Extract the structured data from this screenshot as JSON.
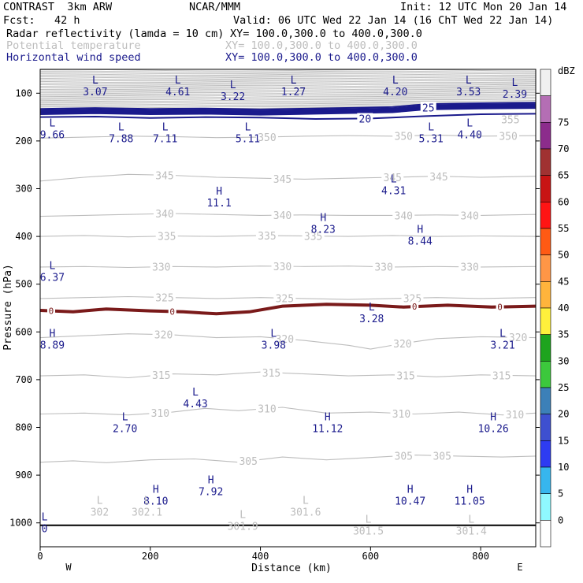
{
  "header": {
    "title_left": "CONTRAST  3km ARW",
    "title_center": "NCAR/MMM",
    "init": "Init: 12 UTC Mon 20 Jan 14",
    "fcst": "Fcst:   42 h",
    "valid": "Valid: 06 UTC Wed 22 Jan 14 (16 ChT Wed 22 Jan 14)",
    "field1": "Radar reflectivity (lamda = 10 cm)",
    "field1_xy": "XY= 100.0,300.0 to 400.0,300.0",
    "field2": "Potential temperature",
    "field2_xy": "XY= 100.0,300.0 to 400.0,300.0",
    "field3": "Horizontal wind speed",
    "field3_xy": "XY= 100.0,300.0 to 400.0,300.0"
  },
  "colors": {
    "theta": "#bdbdbd",
    "wind": "#1a1a8c",
    "zero_wind": "#7a1a1a",
    "ground": "#000000"
  },
  "chart_data": {
    "type": "contour",
    "xlabel": "Distance (km)",
    "ylabel": "Pressure (hPa)",
    "xlim": [
      0,
      900
    ],
    "ylim": [
      1050,
      50
    ],
    "xticks": [
      0,
      200,
      400,
      600,
      800
    ],
    "yticks": [
      100,
      200,
      300,
      400,
      500,
      600,
      700,
      800,
      900,
      1000
    ],
    "x_ends": [
      "W",
      "E"
    ],
    "colorbar": {
      "unit": "dBZ",
      "levels": [
        "0",
        "5",
        "10",
        "15",
        "20",
        "25",
        "30",
        "35",
        "40",
        "45",
        "50",
        "55",
        "60",
        "65",
        "70",
        "75"
      ],
      "colors": [
        "#ffffff",
        "#8ff8ff",
        "#37b6ee",
        "#2e3cf2",
        "#3e50d0",
        "#3c80b8",
        "#3cc83c",
        "#1ea41e",
        "#fff03c",
        "#ffb43c",
        "#ff9646",
        "#ff5a14",
        "#ff1414",
        "#c81414",
        "#a03232",
        "#8c2c8c",
        "#b46eb4",
        "#f0f0f0"
      ]
    },
    "theta_contours": [
      {
        "label": "305",
        "pts": [
          [
            0,
            873
          ],
          [
            60,
            870
          ],
          [
            120,
            874
          ],
          [
            200,
            868
          ],
          [
            280,
            866
          ],
          [
            360,
            873
          ],
          [
            440,
            862
          ],
          [
            520,
            868
          ],
          [
            600,
            863
          ],
          [
            680,
            858
          ],
          [
            760,
            860
          ],
          [
            840,
            862
          ],
          [
            900,
            860
          ]
        ],
        "label_x": [
          378,
          660,
          730
        ]
      },
      {
        "label": "310",
        "pts": [
          [
            0,
            772
          ],
          [
            80,
            770
          ],
          [
            160,
            774
          ],
          [
            240,
            768
          ],
          [
            300,
            760
          ],
          [
            360,
            765
          ],
          [
            440,
            758
          ],
          [
            520,
            770
          ],
          [
            600,
            768
          ],
          [
            680,
            772
          ],
          [
            760,
            768
          ],
          [
            840,
            774
          ],
          [
            900,
            770
          ]
        ],
        "label_x": [
          218,
          412,
          656,
          862
        ]
      },
      {
        "label": "315",
        "pts": [
          [
            0,
            692
          ],
          [
            80,
            690
          ],
          [
            160,
            696
          ],
          [
            240,
            688
          ],
          [
            320,
            690
          ],
          [
            400,
            684
          ],
          [
            480,
            688
          ],
          [
            560,
            692
          ],
          [
            640,
            690
          ],
          [
            720,
            694
          ],
          [
            800,
            690
          ],
          [
            900,
            692
          ]
        ],
        "label_x": [
          220,
          420,
          664,
          838
        ]
      },
      {
        "label": "320",
        "pts": [
          [
            0,
            612
          ],
          [
            80,
            608
          ],
          [
            160,
            604
          ],
          [
            240,
            606
          ],
          [
            320,
            612
          ],
          [
            400,
            610
          ],
          [
            480,
            618
          ],
          [
            560,
            628
          ],
          [
            600,
            636
          ],
          [
            660,
            624
          ],
          [
            720,
            614
          ],
          [
            800,
            610
          ],
          [
            900,
            612
          ]
        ],
        "label_x": [
          224,
          444,
          658,
          868
        ]
      },
      {
        "label": "325",
        "pts": [
          [
            0,
            530
          ],
          [
            80,
            528
          ],
          [
            160,
            526
          ],
          [
            240,
            528
          ],
          [
            320,
            530
          ],
          [
            400,
            528
          ],
          [
            480,
            530
          ],
          [
            560,
            532
          ],
          [
            640,
            530
          ],
          [
            720,
            528
          ],
          [
            800,
            530
          ],
          [
            900,
            528
          ]
        ],
        "label_x": [
          226,
          444,
          676
        ]
      },
      {
        "label": "330",
        "pts": [
          [
            0,
            464
          ],
          [
            80,
            463
          ],
          [
            160,
            465
          ],
          [
            240,
            463
          ],
          [
            320,
            464
          ],
          [
            400,
            462
          ],
          [
            480,
            463
          ],
          [
            560,
            462
          ],
          [
            640,
            464
          ],
          [
            720,
            463
          ],
          [
            800,
            464
          ],
          [
            900,
            463
          ]
        ],
        "label_x": [
          220,
          440,
          624,
          780
        ]
      },
      {
        "label": "335",
        "pts": [
          [
            0,
            400
          ],
          [
            80,
            398
          ],
          [
            160,
            401
          ],
          [
            240,
            399
          ],
          [
            320,
            400
          ],
          [
            400,
            398
          ],
          [
            480,
            399
          ],
          [
            560,
            400
          ],
          [
            640,
            398
          ],
          [
            720,
            400
          ],
          [
            800,
            399
          ],
          [
            900,
            400
          ]
        ],
        "label_x": [
          230,
          412,
          496
        ]
      },
      {
        "label": "340",
        "pts": [
          [
            0,
            358
          ],
          [
            80,
            356
          ],
          [
            160,
            354
          ],
          [
            240,
            352
          ],
          [
            320,
            354
          ],
          [
            400,
            356
          ],
          [
            480,
            355
          ],
          [
            560,
            356
          ],
          [
            640,
            356
          ],
          [
            720,
            355
          ],
          [
            800,
            356
          ],
          [
            900,
            354
          ]
        ],
        "label_x": [
          226,
          440,
          660,
          780
        ]
      },
      {
        "label": "345",
        "pts": [
          [
            0,
            284
          ],
          [
            80,
            276
          ],
          [
            160,
            270
          ],
          [
            240,
            272
          ],
          [
            320,
            276
          ],
          [
            400,
            278
          ],
          [
            480,
            280
          ],
          [
            560,
            278
          ],
          [
            640,
            276
          ],
          [
            720,
            274
          ],
          [
            800,
            276
          ],
          [
            900,
            274
          ]
        ],
        "label_x": [
          226,
          440,
          640,
          724
        ]
      },
      {
        "label": "350",
        "pts": [
          [
            0,
            194
          ],
          [
            80,
            192
          ],
          [
            160,
            190
          ],
          [
            240,
            191
          ],
          [
            320,
            193
          ],
          [
            400,
            192
          ],
          [
            480,
            190
          ],
          [
            560,
            189
          ],
          [
            640,
            190
          ],
          [
            720,
            188
          ],
          [
            800,
            190
          ],
          [
            900,
            189
          ]
        ],
        "label_x": [
          412,
          660,
          850
        ]
      }
    ],
    "theta_label_355": {
      "label": "355",
      "x": 854,
      "p": 155
    },
    "wind_contours": [
      {
        "label": "20",
        "pts": [
          [
            0,
            150
          ],
          [
            100,
            149
          ],
          [
            200,
            152
          ],
          [
            300,
            150
          ],
          [
            400,
            151
          ],
          [
            500,
            154
          ],
          [
            600,
            153
          ],
          [
            700,
            148
          ],
          [
            800,
            144
          ],
          [
            900,
            143
          ]
        ],
        "label_x": [
          590
        ]
      },
      {
        "label": "25",
        "pts": [
          [
            0,
            140
          ],
          [
            100,
            138
          ],
          [
            200,
            140
          ],
          [
            300,
            139
          ],
          [
            400,
            141
          ],
          [
            500,
            139
          ],
          [
            640,
            136
          ],
          [
            700,
            130
          ],
          [
            800,
            128
          ],
          [
            900,
            127
          ]
        ],
        "label_x": [
          705
        ]
      }
    ],
    "zero_wind_line": {
      "label": "0",
      "pts": [
        [
          0,
          555
        ],
        [
          60,
          558
        ],
        [
          120,
          552
        ],
        [
          200,
          556
        ],
        [
          260,
          558
        ],
        [
          320,
          562
        ],
        [
          380,
          558
        ],
        [
          440,
          546
        ],
        [
          520,
          542
        ],
        [
          600,
          544
        ],
        [
          660,
          548
        ],
        [
          740,
          544
        ],
        [
          820,
          548
        ],
        [
          900,
          546
        ]
      ],
      "label_x": [
        20,
        240,
        680,
        835
      ]
    },
    "ground_pressure_hPa": 1005,
    "extrema": [
      {
        "type": "L",
        "value": "3.07",
        "x": 100,
        "p": 80,
        "field": "wind"
      },
      {
        "type": "L",
        "value": "4.61",
        "x": 250,
        "p": 80,
        "field": "wind"
      },
      {
        "type": "L",
        "value": "3.22",
        "x": 350,
        "p": 90,
        "field": "wind"
      },
      {
        "type": "L",
        "value": "1.27",
        "x": 460,
        "p": 80,
        "field": "wind"
      },
      {
        "type": "L",
        "value": "4.20",
        "x": 645,
        "p": 80,
        "field": "wind"
      },
      {
        "type": "L",
        "value": "3.53",
        "x": 778,
        "p": 80,
        "field": "wind"
      },
      {
        "type": "L",
        "value": "2.39",
        "x": 862,
        "p": 85,
        "field": "wind"
      },
      {
        "type": "L",
        "value": "9.66",
        "x": 22,
        "p": 170,
        "field": "wind"
      },
      {
        "type": "L",
        "value": "7.88",
        "x": 147,
        "p": 178,
        "field": "wind"
      },
      {
        "type": "L",
        "value": "7.11",
        "x": 227,
        "p": 178,
        "field": "wind"
      },
      {
        "type": "L",
        "value": "5.11",
        "x": 377,
        "p": 178,
        "field": "wind"
      },
      {
        "type": "L",
        "value": "5.31",
        "x": 710,
        "p": 178,
        "field": "wind"
      },
      {
        "type": "L",
        "value": "4.40",
        "x": 780,
        "p": 170,
        "field": "wind"
      },
      {
        "type": "H",
        "value": "11.1",
        "x": 325,
        "p": 312,
        "field": "wind"
      },
      {
        "type": "L",
        "value": "4.31",
        "x": 642,
        "p": 287,
        "field": "wind"
      },
      {
        "type": "H",
        "value": "8.23",
        "x": 514,
        "p": 368,
        "field": "wind"
      },
      {
        "type": "H",
        "value": "8.44",
        "x": 690,
        "p": 392,
        "field": "wind"
      },
      {
        "type": "L",
        "value": "6.37",
        "x": 22,
        "p": 468,
        "field": "wind"
      },
      {
        "type": "L",
        "value": "3.28",
        "x": 602,
        "p": 555,
        "field": "wind"
      },
      {
        "type": "H",
        "value": "8.89",
        "x": 22,
        "p": 610,
        "field": "wind"
      },
      {
        "type": "L",
        "value": "3.98",
        "x": 424,
        "p": 610,
        "field": "wind"
      },
      {
        "type": "L",
        "value": "3.21",
        "x": 840,
        "p": 610,
        "field": "wind"
      },
      {
        "type": "L",
        "value": "4.43",
        "x": 282,
        "p": 733,
        "field": "wind"
      },
      {
        "type": "L",
        "value": "2.70",
        "x": 154,
        "p": 785,
        "field": "wind"
      },
      {
        "type": "H",
        "value": "11.12",
        "x": 522,
        "p": 785,
        "field": "wind"
      },
      {
        "type": "H",
        "value": "10.26",
        "x": 823,
        "p": 785,
        "field": "wind"
      },
      {
        "type": "H",
        "value": "7.92",
        "x": 310,
        "p": 917,
        "field": "wind"
      },
      {
        "type": "H",
        "value": "8.10",
        "x": 210,
        "p": 937,
        "field": "wind"
      },
      {
        "type": "H",
        "value": "10.47",
        "x": 672,
        "p": 937,
        "field": "wind"
      },
      {
        "type": "H",
        "value": "11.05",
        "x": 780,
        "p": 937,
        "field": "wind"
      },
      {
        "type": "L",
        "value": "302",
        "x": 108,
        "p": 960,
        "field": "theta"
      },
      {
        "type": "L",
        "value": "302.1",
        "x": 194,
        "p": 960,
        "field": "theta"
      },
      {
        "type": "L",
        "value": "301.6",
        "x": 482,
        "p": 960,
        "field": "theta"
      },
      {
        "type": "L",
        "value": "301.9",
        "x": 368,
        "p": 990,
        "field": "theta"
      },
      {
        "type": "L",
        "value": "301.5",
        "x": 596,
        "p": 1000,
        "field": "theta"
      },
      {
        "type": "L",
        "value": "301.4",
        "x": 783,
        "p": 1000,
        "field": "theta"
      },
      {
        "type": "L",
        "value": "0",
        "x": 8,
        "p": 995,
        "field": "wind"
      }
    ]
  }
}
